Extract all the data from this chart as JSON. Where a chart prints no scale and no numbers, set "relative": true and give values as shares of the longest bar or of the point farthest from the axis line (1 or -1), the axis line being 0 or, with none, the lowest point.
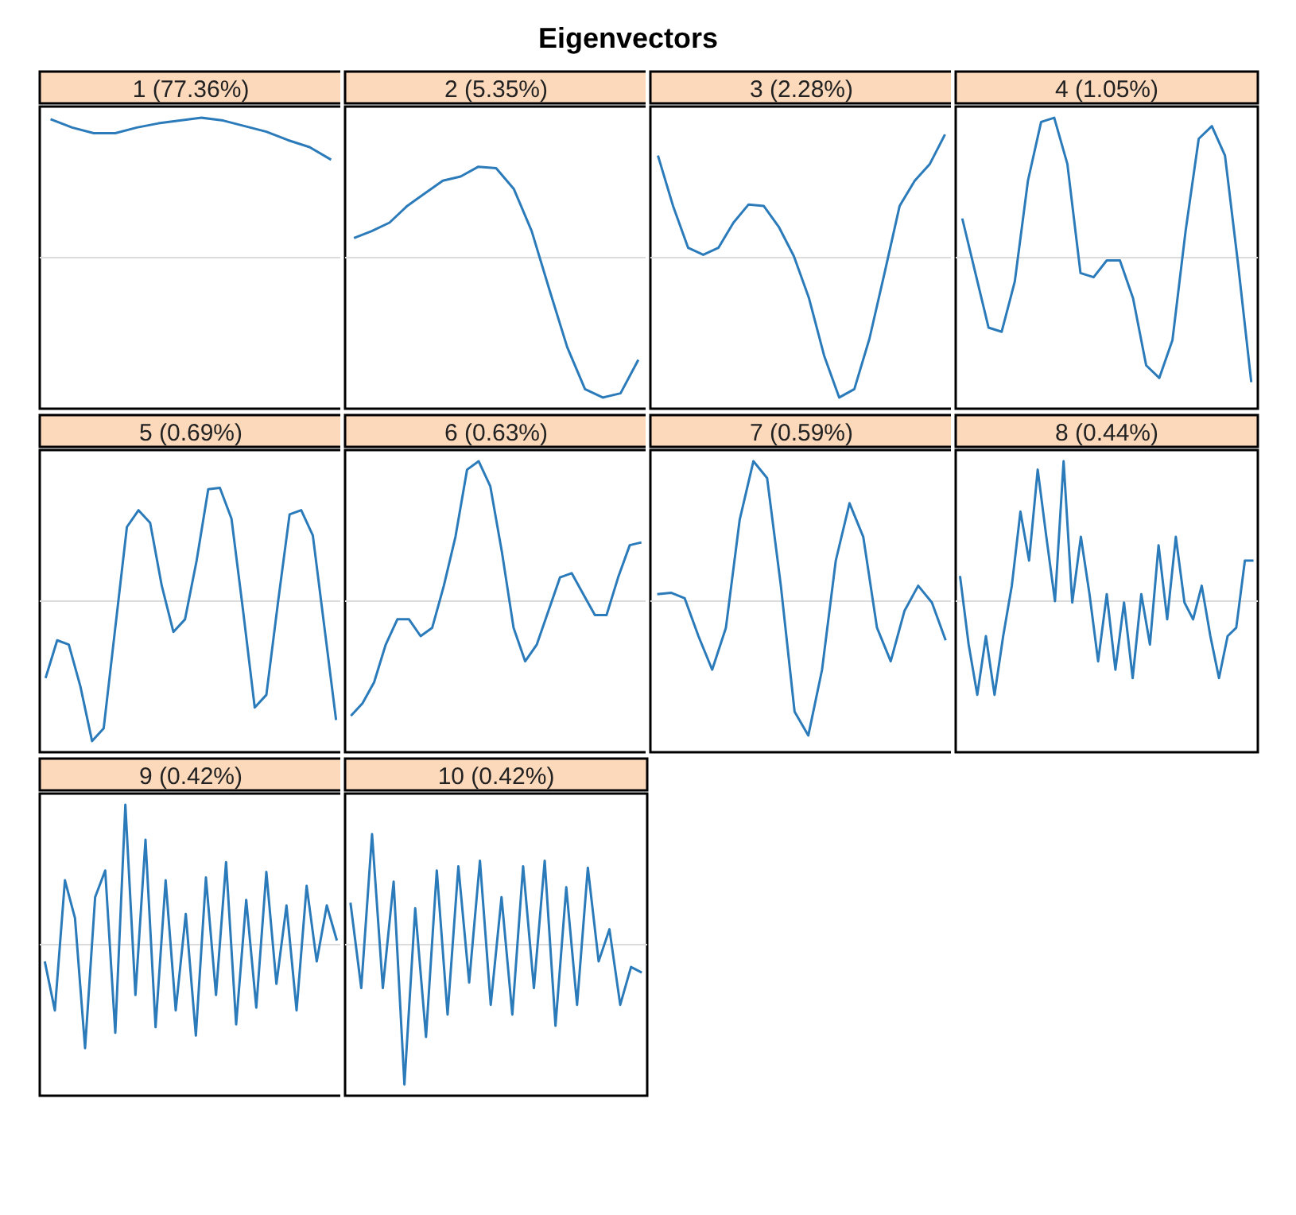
{
  "chart_data": [
    {
      "type": "line",
      "title": "1 (77.36%)",
      "annotations": [
        "Eigenvectors"
      ],
      "relative": true,
      "color": "#2b7bba",
      "ref_lines": [
        {
          "axis": "y",
          "value": 0,
          "color": "#dcdcdc"
        }
      ],
      "categories": [
        null,
        null,
        null,
        null,
        null,
        null,
        null,
        null,
        null,
        null,
        null,
        null,
        null,
        null
      ],
      "values": [
        0.99,
        0.93,
        0.89,
        0.89,
        0.93,
        0.96,
        0.98,
        1.0,
        0.98,
        0.94,
        0.9,
        0.84,
        0.79,
        0.7
      ]
    },
    {
      "type": "line",
      "title": "2 (5.35%)",
      "relative": true,
      "color": "#2b7bba",
      "ref_lines": [
        {
          "axis": "y",
          "value": 0,
          "color": "#dcdcdc"
        }
      ],
      "categories": [
        null,
        null,
        null,
        null,
        null,
        null,
        null,
        null,
        null,
        null,
        null,
        null,
        null,
        null,
        null,
        null,
        null
      ],
      "values": [
        0.14,
        0.19,
        0.25,
        0.37,
        0.46,
        0.55,
        0.58,
        0.65,
        0.64,
        0.49,
        0.19,
        -0.23,
        -0.64,
        -0.94,
        -1,
        -0.97,
        -0.73
      ]
    },
    {
      "type": "line",
      "title": "3 (2.28%)",
      "relative": true,
      "color": "#2b7bba",
      "ref_lines": [
        {
          "axis": "y",
          "value": 0,
          "color": "#dcdcdc"
        }
      ],
      "categories": [
        null,
        null,
        null,
        null,
        null,
        null,
        null,
        null,
        null,
        null,
        null,
        null,
        null,
        null,
        null,
        null,
        null,
        null,
        null,
        null
      ],
      "values": [
        0.73,
        0.37,
        0.07,
        0.02,
        0.07,
        0.25,
        0.38,
        0.37,
        0.22,
        0.01,
        -0.29,
        -0.7,
        -1,
        -0.94,
        -0.58,
        -0.11,
        0.37,
        0.55,
        0.67,
        0.88
      ]
    },
    {
      "type": "line",
      "title": "4 (1.05%)",
      "relative": true,
      "color": "#2b7bba",
      "ref_lines": [
        {
          "axis": "y",
          "value": 0,
          "color": "#dcdcdc"
        }
      ],
      "categories": [
        null,
        null,
        null,
        null,
        null,
        null,
        null,
        null,
        null,
        null,
        null,
        null,
        null,
        null,
        null,
        null,
        null,
        null,
        null,
        null,
        null,
        null,
        null
      ],
      "values": [
        0.28,
        -0.11,
        -0.5,
        -0.53,
        -0.17,
        0.55,
        0.97,
        1,
        0.67,
        -0.11,
        -0.14,
        -0.02,
        -0.02,
        -0.29,
        -0.77,
        -0.86,
        -0.59,
        0.19,
        0.85,
        0.94,
        0.73,
        -0.05,
        -0.89
      ]
    },
    {
      "type": "line",
      "title": "5 (0.69%)",
      "relative": true,
      "color": "#2b7bba",
      "ref_lines": [
        {
          "axis": "y",
          "value": 0,
          "color": "#dcdcdc"
        }
      ],
      "categories": [
        null,
        null,
        null,
        null,
        null,
        null,
        null,
        null,
        null,
        null,
        null,
        null,
        null,
        null,
        null,
        null,
        null,
        null,
        null,
        null,
        null,
        null,
        null,
        null,
        null,
        null
      ],
      "values": [
        -0.55,
        -0.28,
        -0.31,
        -0.61,
        -1,
        -0.91,
        -0.19,
        0.53,
        0.65,
        0.56,
        0.11,
        -0.22,
        -0.13,
        0.29,
        0.8,
        0.81,
        0.59,
        -0.07,
        -0.76,
        -0.67,
        -0.01,
        0.62,
        0.65,
        0.47,
        -0.19,
        -0.85
      ]
    },
    {
      "type": "line",
      "title": "6 (0.63%)",
      "relative": true,
      "color": "#2b7bba",
      "ref_lines": [
        {
          "axis": "y",
          "value": 0,
          "color": "#dcdcdc"
        }
      ],
      "categories": [
        null,
        null,
        null,
        null,
        null,
        null,
        null,
        null,
        null,
        null,
        null,
        null,
        null,
        null,
        null,
        null,
        null,
        null,
        null,
        null,
        null,
        null,
        null,
        null,
        null,
        null
      ],
      "values": [
        -0.82,
        -0.73,
        -0.58,
        -0.31,
        -0.13,
        -0.13,
        -0.25,
        -0.19,
        0.11,
        0.46,
        0.94,
        1,
        0.82,
        0.35,
        -0.19,
        -0.43,
        -0.31,
        -0.07,
        0.17,
        0.2,
        0.05,
        -0.1,
        -0.1,
        0.17,
        0.4,
        0.42
      ]
    },
    {
      "type": "line",
      "title": "7 (0.59%)",
      "relative": true,
      "color": "#2b7bba",
      "ref_lines": [
        {
          "axis": "y",
          "value": 0,
          "color": "#dcdcdc"
        }
      ],
      "categories": [
        null,
        null,
        null,
        null,
        null,
        null,
        null,
        null,
        null,
        null,
        null,
        null,
        null,
        null,
        null,
        null,
        null,
        null,
        null,
        null,
        null,
        null
      ],
      "values": [
        0.05,
        0.06,
        0.02,
        -0.25,
        -0.49,
        -0.19,
        0.58,
        1,
        0.88,
        0.11,
        -0.79,
        -0.96,
        -0.49,
        0.29,
        0.7,
        0.46,
        -0.19,
        -0.43,
        -0.07,
        0.11,
        -0.01,
        -0.28
      ]
    },
    {
      "type": "line",
      "title": "8 (0.44%)",
      "relative": true,
      "color": "#2b7bba",
      "ref_lines": [
        {
          "axis": "y",
          "value": 0,
          "color": "#dcdcdc"
        }
      ],
      "categories": [
        null,
        null,
        null,
        null,
        null,
        null,
        null,
        null,
        null,
        null,
        null,
        null,
        null,
        null,
        null,
        null,
        null,
        null,
        null,
        null,
        null,
        null,
        null,
        null,
        null,
        null,
        null,
        null,
        null,
        null,
        null,
        null,
        null,
        null,
        null
      ],
      "values": [
        0.18,
        -0.31,
        -0.67,
        -0.25,
        -0.67,
        -0.25,
        0.11,
        0.64,
        0.29,
        0.94,
        0.46,
        0,
        1,
        -0.01,
        0.46,
        0.05,
        -0.43,
        0.05,
        -0.49,
        -0.01,
        -0.55,
        0.05,
        -0.31,
        0.4,
        -0.13,
        0.46,
        -0.01,
        -0.13,
        0.11,
        -0.25,
        -0.55,
        -0.25,
        -0.19,
        0.29,
        0.29
      ]
    },
    {
      "type": "line",
      "title": "9 (0.42%)",
      "relative": true,
      "color": "#2b7bba",
      "ref_lines": [
        {
          "axis": "y",
          "value": 0,
          "color": "#dcdcdc"
        }
      ],
      "categories": [
        null,
        null,
        null,
        null,
        null,
        null,
        null,
        null,
        null,
        null,
        null,
        null,
        null,
        null,
        null,
        null,
        null,
        null,
        null,
        null,
        null,
        null,
        null,
        null,
        null,
        null,
        null,
        null,
        null,
        null
      ],
      "values": [
        -0.12,
        -0.47,
        0.46,
        0.19,
        -0.74,
        0.34,
        0.53,
        -0.63,
        1,
        -0.36,
        0.75,
        -0.59,
        0.46,
        -0.47,
        0.22,
        -0.65,
        0.48,
        -0.36,
        0.59,
        -0.57,
        0.32,
        -0.45,
        0.52,
        -0.28,
        0.28,
        -0.47,
        0.42,
        -0.12,
        0.28,
        0.03
      ]
    },
    {
      "type": "line",
      "title": "10 (0.42%)",
      "relative": true,
      "color": "#2b7bba",
      "ref_lines": [
        {
          "axis": "y",
          "value": 0,
          "color": "#dcdcdc"
        }
      ],
      "categories": [
        null,
        null,
        null,
        null,
        null,
        null,
        null,
        null,
        null,
        null,
        null,
        null,
        null,
        null,
        null,
        null,
        null,
        null,
        null,
        null,
        null,
        null,
        null,
        null,
        null,
        null,
        null,
        null
      ],
      "values": [
        0.3,
        -0.31,
        0.79,
        -0.31,
        0.45,
        -1,
        0.26,
        -0.66,
        0.53,
        -0.5,
        0.56,
        -0.27,
        0.6,
        -0.43,
        0.34,
        -0.5,
        0.56,
        -0.31,
        0.6,
        -0.58,
        0.41,
        -0.43,
        0.55,
        -0.12,
        0.11,
        -0.43,
        -0.16,
        -0.2
      ]
    }
  ]
}
